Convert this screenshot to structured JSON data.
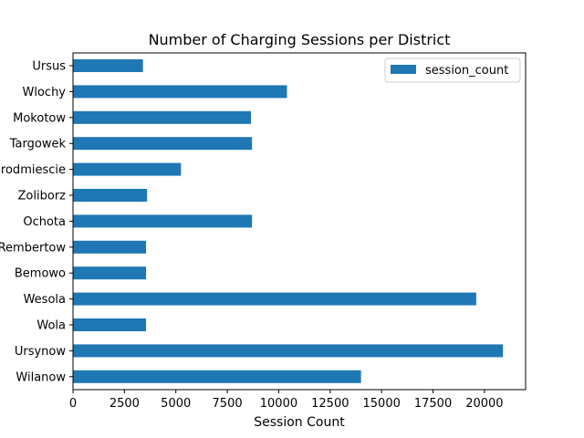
{
  "chart_data": {
    "type": "bar",
    "orientation": "horizontal",
    "title": "Number of Charging Sessions per District",
    "xlabel": "Session Count",
    "ylabel": "",
    "xlim": [
      0,
      22000
    ],
    "xticks": [
      0,
      2500,
      5000,
      7500,
      10000,
      12500,
      15000,
      17500,
      20000
    ],
    "xtick_labels": [
      "0",
      "2500",
      "5000",
      "7500",
      "10000",
      "12500",
      "15000",
      "17500",
      "20000"
    ],
    "grid": false,
    "legend": {
      "position": "top-right"
    },
    "categories": [
      "Ursus",
      "Wlochy",
      "Mokotow",
      "Targowek",
      "Srodmiescie",
      "Zoliborz",
      "Ochota",
      "Rembertow",
      "Bemowo",
      "Wesola",
      "Wola",
      "Ursynow",
      "Wilanow"
    ],
    "series": [
      {
        "name": "session_count",
        "color": "#1f77b4",
        "values": [
          3400,
          10400,
          8650,
          8700,
          5250,
          3600,
          8700,
          3550,
          3550,
          19600,
          3550,
          20900,
          14000
        ]
      }
    ]
  }
}
